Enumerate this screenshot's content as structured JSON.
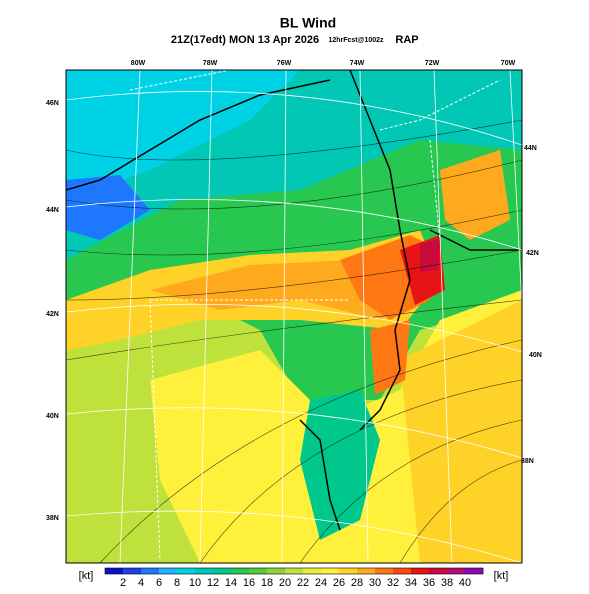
{
  "header": {
    "title": "BL Wind",
    "valid_time": "21Z(17edt) MON 13 Apr 2026",
    "forecast": "12hrFcst@1002z",
    "model": "RAP"
  },
  "map": {
    "top_labels": [
      "80W",
      "78W",
      "76W",
      "74W",
      "72W",
      "70W"
    ],
    "left_labels": [
      "46N",
      "44N",
      "42N",
      "40N",
      "38N"
    ],
    "right_labels": [
      "44N",
      "42N",
      "40N",
      "38N"
    ]
  },
  "colorbar": {
    "unit_left": "[kt]",
    "unit_right": "[kt]",
    "labels": [
      "2",
      "4",
      "6",
      "8",
      "10",
      "12",
      "14",
      "16",
      "18",
      "20",
      "22",
      "24",
      "26",
      "28",
      "30",
      "32",
      "34",
      "36",
      "38",
      "40"
    ],
    "colors": [
      "#1010c8",
      "#1e3cf0",
      "#1e78ff",
      "#1eb4ff",
      "#00d2e6",
      "#00c8b4",
      "#00c88c",
      "#28c850",
      "#5ac83c",
      "#8cd23c",
      "#bee13c",
      "#e6f03c",
      "#fff03c",
      "#ffd228",
      "#ffaa1e",
      "#ff7814",
      "#ff4614",
      "#e61414",
      "#c80a3c",
      "#b40a78",
      "#8c0ab4"
    ]
  }
}
